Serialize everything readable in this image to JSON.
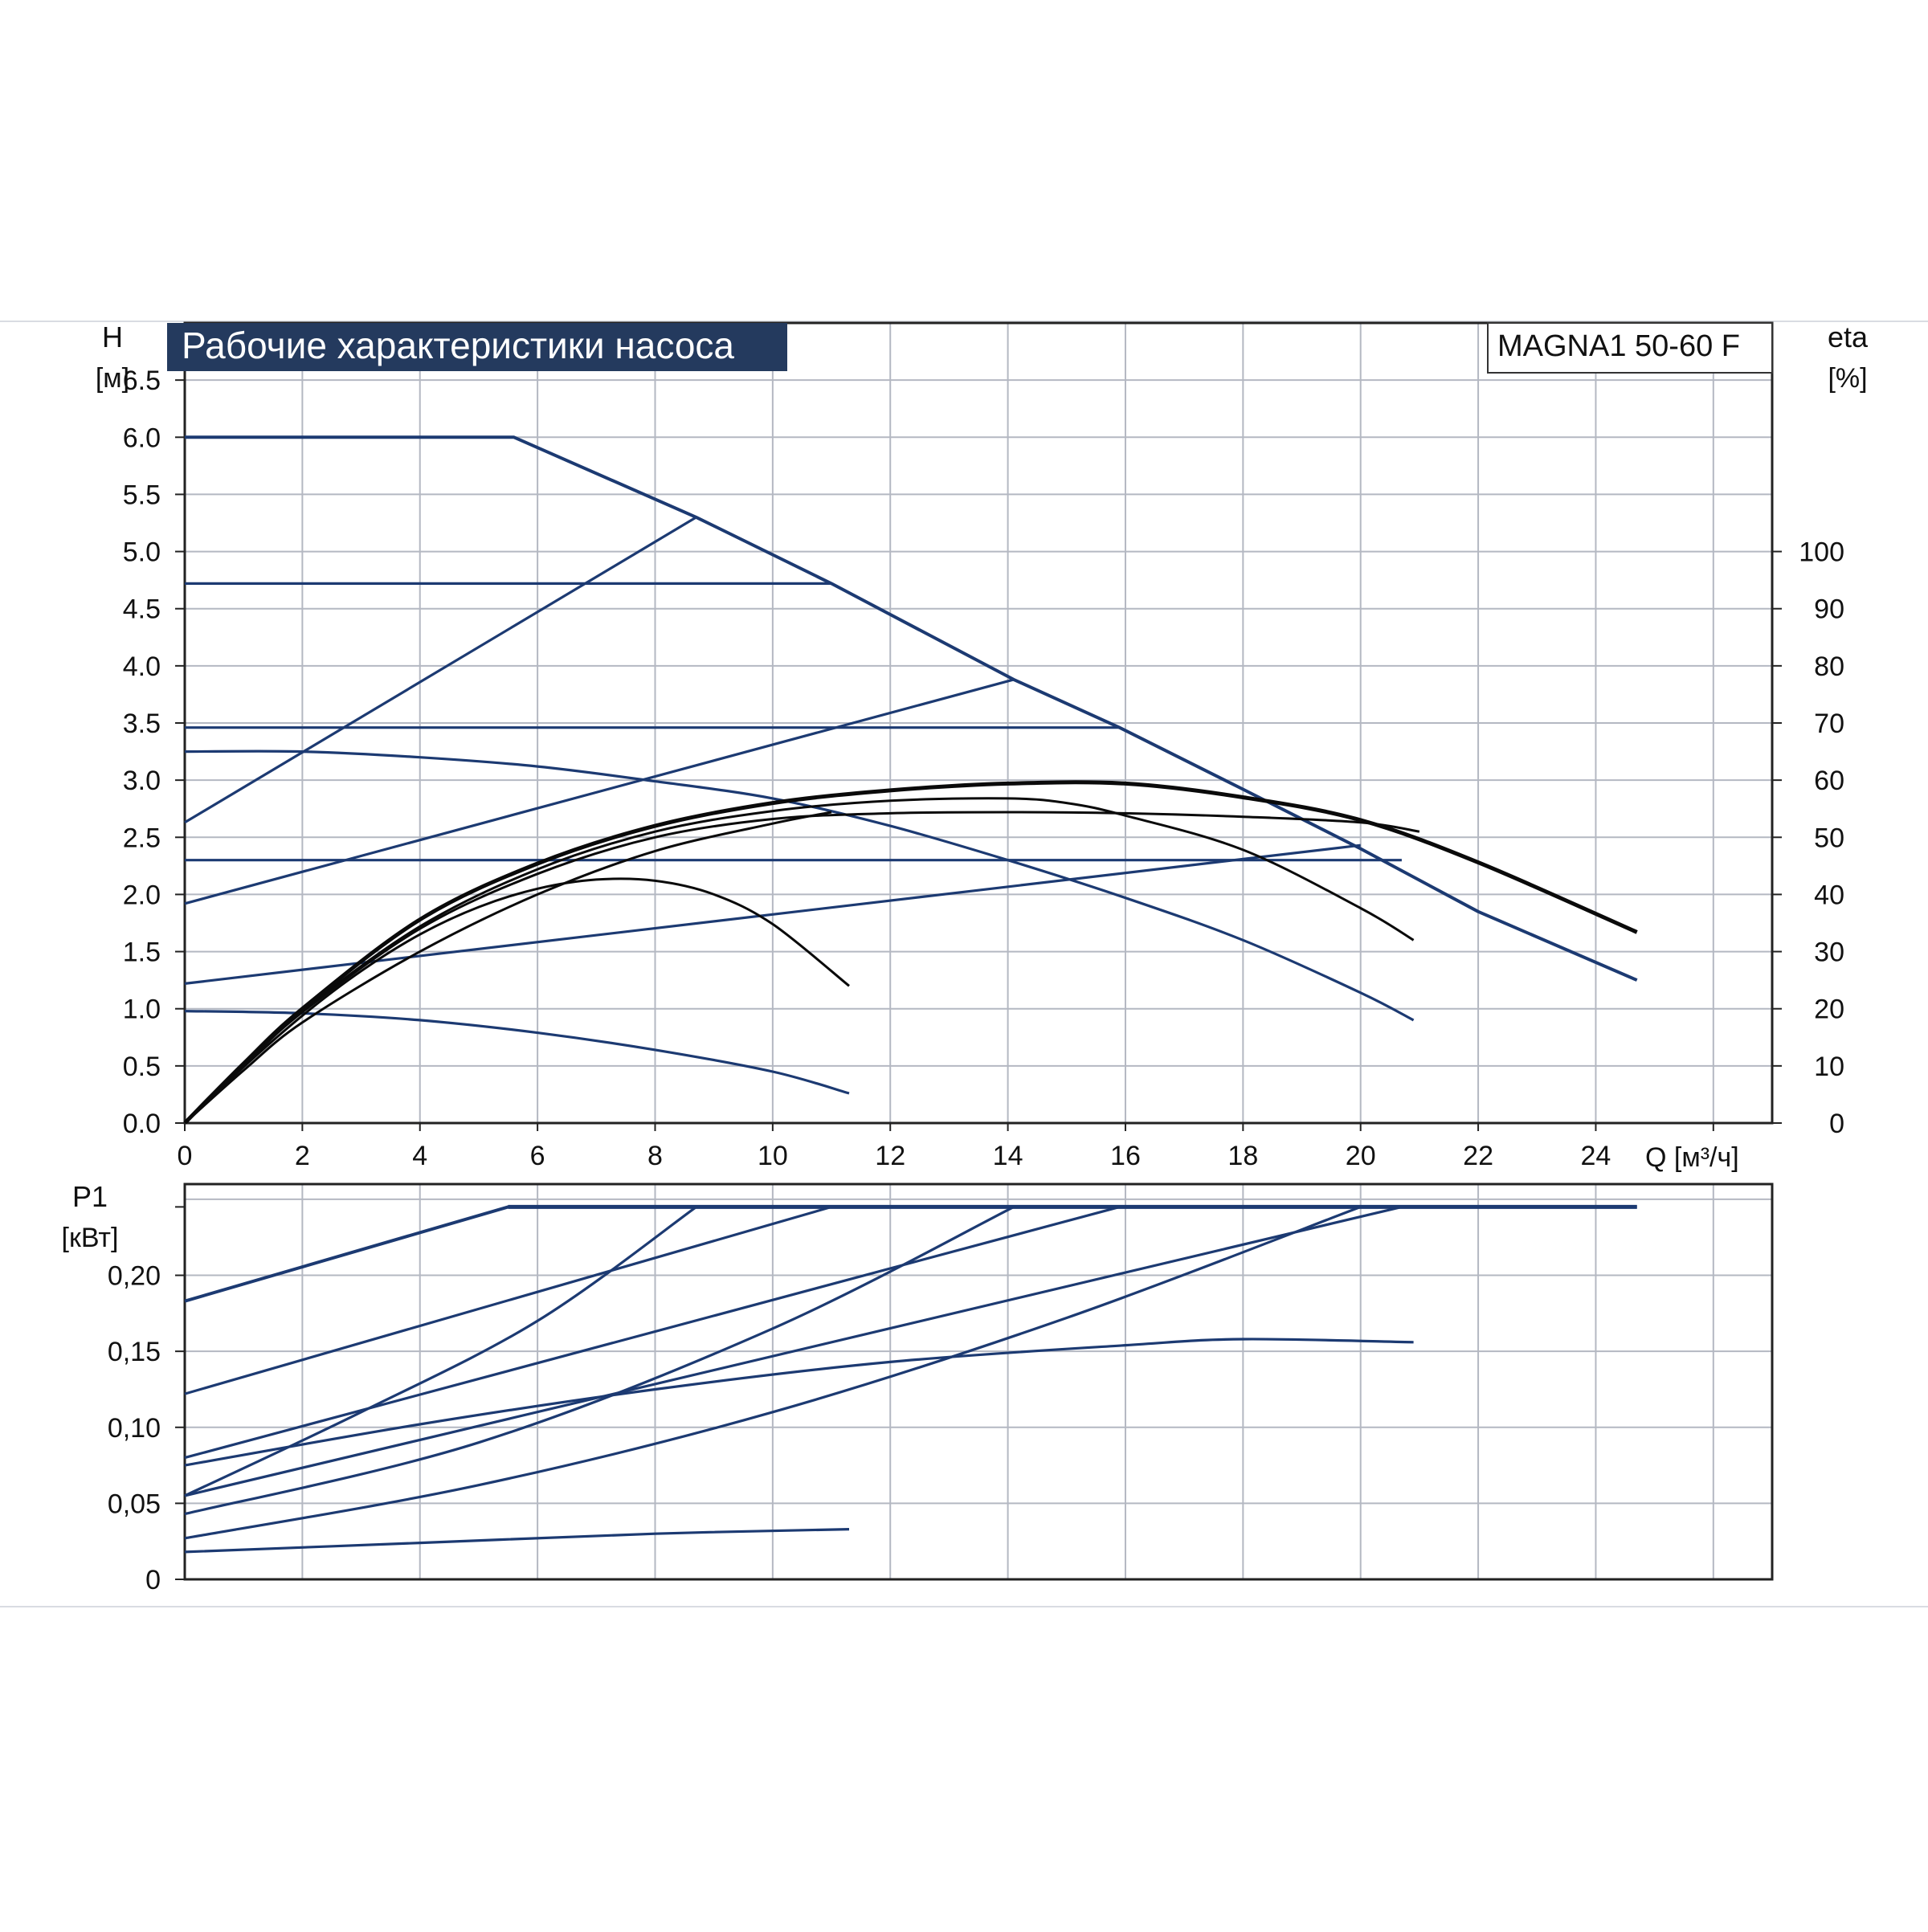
{
  "header": {
    "title": "Рабочие характеристики насоса",
    "model": "MAGNA1 50-60 F"
  },
  "colors": {
    "blue": "#1c3a72",
    "black": "#0a0a0a",
    "grid": "#b4b8c2",
    "title_bg": "#243a5e"
  },
  "chart_data": [
    {
      "id": "head",
      "type": "line",
      "title": "Рабочие характеристики насоса",
      "xlabel": "Q [м³/ч]",
      "ylabel_line1": "H",
      "ylabel_line2": "[м]",
      "y2label_line1": "eta",
      "y2label_line2": "[%]",
      "xlim": [
        0,
        27
      ],
      "ylim": [
        0,
        7.0
      ],
      "y2lim": [
        0,
        140
      ],
      "x_ticks": [
        "0",
        "2",
        "4",
        "6",
        "8",
        "10",
        "12",
        "14",
        "16",
        "18",
        "20",
        "22",
        "24"
      ],
      "y_ticks": [
        "0.0",
        "0.5",
        "1.0",
        "1.5",
        "2.0",
        "2.5",
        "3.0",
        "3.5",
        "4.0",
        "4.5",
        "5.0",
        "5.5",
        "6.0",
        "6.5"
      ],
      "y2_ticks": [
        "0",
        "10",
        "20",
        "30",
        "40",
        "50",
        "60",
        "70",
        "80",
        "90",
        "100"
      ],
      "grid": true,
      "series_blue": [
        {
          "x": [
            0,
            5.6,
            8.7,
            11.0,
            14.1,
            15.9,
            18,
            20,
            22,
            24.7
          ],
          "y": [
            6.0,
            6.0,
            5.3,
            4.72,
            3.88,
            3.46,
            2.92,
            2.4,
            1.85,
            1.25
          ]
        },
        {
          "x": [
            0,
            11.0
          ],
          "y": [
            4.72,
            4.72
          ]
        },
        {
          "x": [
            0,
            15.9
          ],
          "y": [
            3.46,
            3.46
          ]
        },
        {
          "x": [
            0,
            20.7
          ],
          "y": [
            2.3,
            2.3
          ]
        },
        {
          "x": [
            0,
            8.7
          ],
          "y": [
            2.63,
            5.3
          ]
        },
        {
          "x": [
            0,
            14.1
          ],
          "y": [
            1.92,
            3.88
          ]
        },
        {
          "x": [
            0,
            20.0
          ],
          "y": [
            1.22,
            2.43
          ]
        },
        {
          "x": [
            0,
            2,
            4,
            6,
            8,
            10,
            12,
            14,
            16,
            18,
            20,
            20.9
          ],
          "y": [
            3.25,
            3.25,
            3.2,
            3.12,
            2.99,
            2.84,
            2.6,
            2.3,
            1.97,
            1.6,
            1.14,
            0.9
          ]
        },
        {
          "x": [
            0,
            2,
            4,
            6,
            8,
            10,
            11.3
          ],
          "y": [
            0.98,
            0.96,
            0.9,
            0.79,
            0.64,
            0.45,
            0.26
          ]
        }
      ],
      "series_black": [
        {
          "x": [
            0,
            1,
            2,
            4,
            6,
            8,
            10,
            12,
            14,
            16,
            18,
            20,
            22,
            24.7
          ],
          "y": [
            0,
            0.52,
            1.0,
            1.78,
            2.27,
            2.6,
            2.8,
            2.91,
            2.97,
            2.97,
            2.85,
            2.65,
            2.28,
            1.67
          ]
        },
        {
          "x": [
            0,
            1,
            2,
            4,
            6,
            8,
            10,
            12,
            14,
            15,
            16,
            18,
            20,
            20.9
          ],
          "y": [
            0,
            0.5,
            0.98,
            1.72,
            2.22,
            2.55,
            2.73,
            2.82,
            2.84,
            2.8,
            2.69,
            2.39,
            1.88,
            1.6
          ]
        },
        {
          "x": [
            0,
            1,
            2,
            4,
            6,
            8,
            10,
            12,
            14,
            16,
            18,
            20,
            21
          ],
          "y": [
            0,
            0.5,
            0.97,
            1.7,
            2.18,
            2.5,
            2.66,
            2.71,
            2.72,
            2.71,
            2.68,
            2.63,
            2.55
          ]
        },
        {
          "x": [
            0,
            1,
            2,
            3,
            4,
            5,
            6,
            7,
            8,
            9,
            10,
            11.3
          ],
          "y": [
            0,
            0.49,
            0.94,
            1.33,
            1.65,
            1.89,
            2.05,
            2.13,
            2.12,
            2.0,
            1.74,
            1.2
          ]
        },
        {
          "x": [
            0,
            1,
            2,
            4,
            6,
            8,
            10,
            11
          ],
          "y": [
            0,
            0.46,
            0.88,
            1.5,
            2.0,
            2.38,
            2.62,
            2.72
          ]
        }
      ]
    },
    {
      "id": "power",
      "type": "line",
      "xlim": [
        0,
        27
      ],
      "ylim": [
        0,
        0.26
      ],
      "ylabel_line1": "P1",
      "ylabel_line2": "[кВт]",
      "y_ticks": [
        "0",
        "0,05",
        "0,10",
        "0,15",
        "0,20"
      ],
      "grid": true,
      "series_blue": [
        {
          "x": [
            0,
            5.5,
            24.7
          ],
          "y": [
            0.183,
            0.245,
            0.245
          ]
        },
        {
          "x": [
            0,
            11.0
          ],
          "y": [
            0.122,
            0.245
          ]
        },
        {
          "x": [
            0,
            15.9
          ],
          "y": [
            0.08,
            0.245
          ]
        },
        {
          "x": [
            0,
            20.7
          ],
          "y": [
            0.055,
            0.245
          ]
        },
        {
          "x": [
            0,
            3,
            6,
            8.7
          ],
          "y": [
            0.055,
            0.11,
            0.17,
            0.245
          ]
        },
        {
          "x": [
            0,
            5,
            10,
            14.1
          ],
          "y": [
            0.043,
            0.09,
            0.165,
            0.245
          ]
        },
        {
          "x": [
            0,
            5,
            10,
            15,
            20.0
          ],
          "y": [
            0.027,
            0.062,
            0.11,
            0.172,
            0.245
          ]
        },
        {
          "x": [
            0,
            4,
            8,
            12,
            16,
            18,
            20.9
          ],
          "y": [
            0.075,
            0.102,
            0.125,
            0.143,
            0.154,
            0.158,
            0.156
          ]
        },
        {
          "x": [
            0,
            4,
            8,
            11.3
          ],
          "y": [
            0.018,
            0.024,
            0.03,
            0.033
          ]
        }
      ]
    }
  ]
}
